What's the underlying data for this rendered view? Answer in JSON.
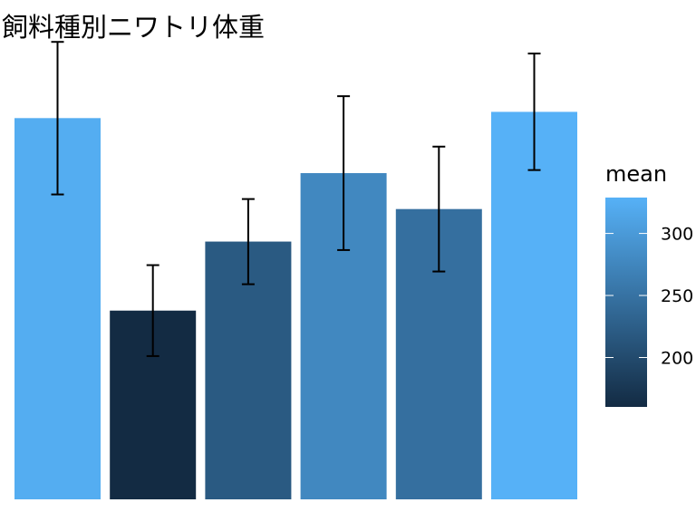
{
  "chart_data": {
    "type": "bar",
    "title": "飼料種別ニワトリ体重",
    "xlabel": "",
    "ylabel": "",
    "categories": [
      "",
      "",
      "",
      "",
      "",
      ""
    ],
    "values": [
      323.6,
      160.2,
      218.8,
      276.9,
      246.4,
      328.9
    ],
    "error_low": [
      258.8,
      121.6,
      182.6,
      211.6,
      193.4,
      279.5
    ],
    "error_high": [
      388.3,
      198.8,
      254.9,
      342.2,
      299.4,
      378.4
    ],
    "ylim": [
      0,
      400
    ],
    "grid": false,
    "legend": {
      "title": "mean",
      "position": "right",
      "ticks": [
        200,
        250,
        300
      ],
      "range": [
        160.2,
        328.9
      ],
      "color_low": "#132B43",
      "color_high": "#56B1F7"
    }
  }
}
